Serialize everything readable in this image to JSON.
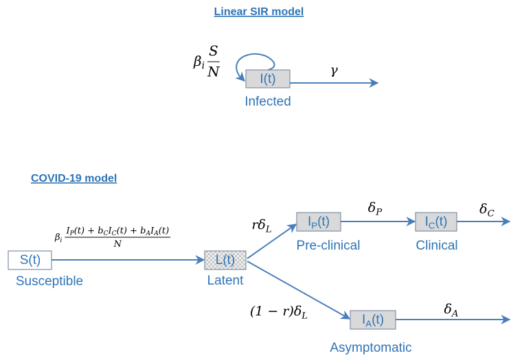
{
  "sir": {
    "title": "Linear SIR model",
    "node": {
      "main": "I",
      "tail": "(t)",
      "caption": "Infected"
    },
    "infection_rate": {
      "symbol": "β",
      "sub": "i",
      "numerator": "S",
      "denominator": "N"
    },
    "recovery_rate": {
      "symbol": "γ"
    }
  },
  "covid": {
    "title": "COVID-19 model",
    "nodes": [
      {
        "main": "S",
        "tail": "(t)",
        "caption": "Susceptible"
      },
      {
        "main": "L",
        "tail": "(t)",
        "caption": "Latent"
      },
      {
        "main": "I",
        "sub": "P",
        "tail": "(t)",
        "caption": "Pre-clinical"
      },
      {
        "main": "I",
        "sub": "C",
        "tail": "(t)",
        "caption": "Clinical"
      },
      {
        "main": "I",
        "sub": "A",
        "tail": "(t)",
        "caption": "Asymptomatic"
      }
    ],
    "infection_rate": {
      "symbol": "β",
      "sub": "i",
      "numerator": [
        {
          "text": "I"
        },
        {
          "sub": "P"
        },
        {
          "text": "(t) + b"
        },
        {
          "sub": "C"
        },
        {
          "text": "I"
        },
        {
          "sub": "C"
        },
        {
          "text": "(t) + b"
        },
        {
          "sub": "A"
        },
        {
          "text": "I"
        },
        {
          "sub": "A"
        },
        {
          "text": "(t)"
        }
      ],
      "denominator": "N"
    },
    "rates": [
      {
        "symbol": "rδ",
        "sub": "L"
      },
      {
        "symbol": "(1 − r)δ",
        "sub": "L"
      },
      {
        "symbol": "δ",
        "sub": "P"
      },
      {
        "symbol": "δ",
        "sub": "C"
      },
      {
        "symbol": "δ",
        "sub": "A"
      }
    ]
  }
}
